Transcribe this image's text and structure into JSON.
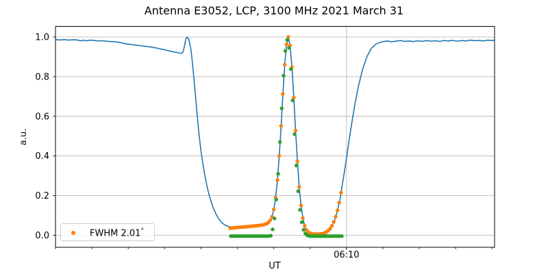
{
  "title": "Antenna E3052, LCP, 3100 MHz 2021 March 31",
  "colors": {
    "line_blue": "#1f77b4",
    "scatter_orange": "#ff7f0e",
    "scatter_green": "#2ca02c",
    "grid": "#b0b0b0",
    "spine": "#000000",
    "background": "#ffffff"
  },
  "legend": {
    "label": "FWHM 2.01",
    "degree_symbol": "°",
    "marker": "circle",
    "marker_color": "#ff7f0e",
    "position": "lower left"
  },
  "chart_data": {
    "type": "line+scatter",
    "title": "Antenna E3052, LCP, 3100 MHz 2021 March 31",
    "xlabel": "UT",
    "ylabel": "a.u.",
    "x_unit": "minutes after 06:00 UT",
    "xlim": [
      2.0,
      14.07
    ],
    "ylim": [
      -0.055,
      1.06
    ],
    "y_ticks": [
      0.0,
      0.2,
      0.4,
      0.6,
      0.8,
      1.0
    ],
    "x_major_ticks": [
      {
        "t": 10,
        "label": "06:10"
      }
    ],
    "x_minor_ticks": [
      2,
      3,
      4,
      5,
      6,
      7,
      8,
      9,
      10,
      11,
      12,
      13,
      14
    ],
    "grid": true,
    "legend": {
      "entries": [
        {
          "label": "FWHM 2.01°",
          "marker": "circle",
          "color": "#ff7f0e",
          "series": "orange-points"
        }
      ],
      "position": "lower left"
    },
    "series": [
      {
        "name": "blue-line",
        "type": "line",
        "color": "#1f77b4",
        "points": [
          [
            2.0,
            0.987
          ],
          [
            2.12,
            0.985
          ],
          [
            2.24,
            0.987
          ],
          [
            2.36,
            0.984
          ],
          [
            2.48,
            0.986
          ],
          [
            2.6,
            0.985
          ],
          [
            2.7,
            0.98
          ],
          [
            2.76,
            0.984
          ],
          [
            2.84,
            0.981
          ],
          [
            2.96,
            0.984
          ],
          [
            3.08,
            0.982
          ],
          [
            3.2,
            0.98
          ],
          [
            3.32,
            0.981
          ],
          [
            3.44,
            0.978
          ],
          [
            3.56,
            0.977
          ],
          [
            3.68,
            0.975
          ],
          [
            3.8,
            0.971
          ],
          [
            3.92,
            0.966
          ],
          [
            4.04,
            0.963
          ],
          [
            4.16,
            0.96
          ],
          [
            4.28,
            0.957
          ],
          [
            4.4,
            0.955
          ],
          [
            4.52,
            0.952
          ],
          [
            4.64,
            0.949
          ],
          [
            4.76,
            0.945
          ],
          [
            4.88,
            0.94
          ],
          [
            5.0,
            0.936
          ],
          [
            5.12,
            0.93
          ],
          [
            5.24,
            0.925
          ],
          [
            5.36,
            0.921
          ],
          [
            5.46,
            0.917
          ],
          [
            5.51,
            0.925
          ],
          [
            5.55,
            0.958
          ],
          [
            5.58,
            0.988
          ],
          [
            5.61,
            0.999
          ],
          [
            5.64,
            0.996
          ],
          [
            5.68,
            0.978
          ],
          [
            5.72,
            0.94
          ],
          [
            5.76,
            0.878
          ],
          [
            5.8,
            0.8
          ],
          [
            5.85,
            0.7
          ],
          [
            5.9,
            0.596
          ],
          [
            5.95,
            0.5
          ],
          [
            6.0,
            0.425
          ],
          [
            6.06,
            0.352
          ],
          [
            6.12,
            0.288
          ],
          [
            6.18,
            0.235
          ],
          [
            6.24,
            0.192
          ],
          [
            6.32,
            0.146
          ],
          [
            6.4,
            0.112
          ],
          [
            6.48,
            0.085
          ],
          [
            6.56,
            0.066
          ],
          [
            6.64,
            0.054
          ],
          [
            6.72,
            0.047
          ],
          [
            6.8,
            0.043
          ],
          [
            6.9,
            0.041
          ],
          [
            7.0,
            0.042
          ],
          [
            7.1,
            0.043
          ],
          [
            7.2,
            0.044
          ],
          [
            7.3,
            0.045
          ],
          [
            7.4,
            0.046
          ],
          [
            7.5,
            0.048
          ],
          [
            7.6,
            0.05
          ],
          [
            7.7,
            0.052
          ],
          [
            7.8,
            0.056
          ],
          [
            7.88,
            0.066
          ],
          [
            7.94,
            0.085
          ],
          [
            8.0,
            0.128
          ],
          [
            8.05,
            0.188
          ],
          [
            8.1,
            0.276
          ],
          [
            8.15,
            0.398
          ],
          [
            8.2,
            0.545
          ],
          [
            8.25,
            0.705
          ],
          [
            8.3,
            0.858
          ],
          [
            8.35,
            0.96
          ],
          [
            8.4,
            1.0
          ],
          [
            8.45,
            0.957
          ],
          [
            8.5,
            0.848
          ],
          [
            8.55,
            0.695
          ],
          [
            8.6,
            0.528
          ],
          [
            8.65,
            0.373
          ],
          [
            8.7,
            0.244
          ],
          [
            8.75,
            0.15
          ],
          [
            8.8,
            0.087
          ],
          [
            8.85,
            0.048
          ],
          [
            8.9,
            0.027
          ],
          [
            8.95,
            0.016
          ],
          [
            9.0,
            0.012
          ],
          [
            9.1,
            0.01
          ],
          [
            9.2,
            0.01
          ],
          [
            9.3,
            0.011
          ],
          [
            9.4,
            0.014
          ],
          [
            9.5,
            0.025
          ],
          [
            9.58,
            0.042
          ],
          [
            9.66,
            0.07
          ],
          [
            9.74,
            0.115
          ],
          [
            9.82,
            0.18
          ],
          [
            9.9,
            0.272
          ],
          [
            9.96,
            0.34
          ],
          [
            10.02,
            0.415
          ],
          [
            10.08,
            0.49
          ],
          [
            10.16,
            0.585
          ],
          [
            10.24,
            0.67
          ],
          [
            10.32,
            0.745
          ],
          [
            10.44,
            0.835
          ],
          [
            10.56,
            0.9
          ],
          [
            10.68,
            0.942
          ],
          [
            10.8,
            0.963
          ],
          [
            10.88,
            0.97
          ],
          [
            10.96,
            0.974
          ],
          [
            11.0,
            0.977
          ],
          [
            11.12,
            0.98
          ],
          [
            11.24,
            0.976
          ],
          [
            11.36,
            0.979
          ],
          [
            11.48,
            0.982
          ],
          [
            11.6,
            0.978
          ],
          [
            11.72,
            0.98
          ],
          [
            11.84,
            0.977
          ],
          [
            11.96,
            0.981
          ],
          [
            12.08,
            0.978
          ],
          [
            12.2,
            0.982
          ],
          [
            12.32,
            0.979
          ],
          [
            12.44,
            0.981
          ],
          [
            12.56,
            0.978
          ],
          [
            12.68,
            0.982
          ],
          [
            12.8,
            0.98
          ],
          [
            12.92,
            0.983
          ],
          [
            13.04,
            0.979
          ],
          [
            13.16,
            0.982
          ],
          [
            13.28,
            0.98
          ],
          [
            13.4,
            0.984
          ],
          [
            13.52,
            0.981
          ],
          [
            13.64,
            0.983
          ],
          [
            13.76,
            0.98
          ],
          [
            13.88,
            0.984
          ],
          [
            14.0,
            0.982
          ],
          [
            14.07,
            0.984
          ]
        ]
      },
      {
        "name": "orange-points",
        "type": "scatter",
        "color": "#ff7f0e",
        "points": [
          [
            6.8,
            0.036
          ],
          [
            6.85,
            0.037
          ],
          [
            6.9,
            0.038
          ],
          [
            6.95,
            0.038
          ],
          [
            7.0,
            0.04
          ],
          [
            7.05,
            0.04
          ],
          [
            7.1,
            0.041
          ],
          [
            7.15,
            0.042
          ],
          [
            7.2,
            0.043
          ],
          [
            7.25,
            0.043
          ],
          [
            7.3,
            0.044
          ],
          [
            7.35,
            0.045
          ],
          [
            7.4,
            0.046
          ],
          [
            7.45,
            0.047
          ],
          [
            7.5,
            0.048
          ],
          [
            7.55,
            0.048
          ],
          [
            7.6,
            0.05
          ],
          [
            7.65,
            0.051
          ],
          [
            7.7,
            0.052
          ],
          [
            7.75,
            0.055
          ],
          [
            7.8,
            0.058
          ],
          [
            7.85,
            0.064
          ],
          [
            7.9,
            0.075
          ],
          [
            7.95,
            0.094
          ],
          [
            8.0,
            0.13
          ],
          [
            8.05,
            0.19
          ],
          [
            8.1,
            0.278
          ],
          [
            8.15,
            0.401
          ],
          [
            8.2,
            0.552
          ],
          [
            8.25,
            0.713
          ],
          [
            8.3,
            0.86
          ],
          [
            8.35,
            0.963
          ],
          [
            8.4,
            1.0
          ],
          [
            8.45,
            0.957
          ],
          [
            8.5,
            0.848
          ],
          [
            8.55,
            0.695
          ],
          [
            8.6,
            0.528
          ],
          [
            8.65,
            0.373
          ],
          [
            8.7,
            0.244
          ],
          [
            8.75,
            0.15
          ],
          [
            8.8,
            0.087
          ],
          [
            8.85,
            0.048
          ],
          [
            8.9,
            0.027
          ],
          [
            8.95,
            0.016
          ],
          [
            9.0,
            0.011
          ],
          [
            9.05,
            0.008
          ],
          [
            9.1,
            0.006
          ],
          [
            9.15,
            0.006
          ],
          [
            9.2,
            0.006
          ],
          [
            9.25,
            0.006
          ],
          [
            9.3,
            0.007
          ],
          [
            9.35,
            0.009
          ],
          [
            9.4,
            0.012
          ],
          [
            9.45,
            0.017
          ],
          [
            9.5,
            0.024
          ],
          [
            9.55,
            0.034
          ],
          [
            9.6,
            0.048
          ],
          [
            9.65,
            0.068
          ],
          [
            9.7,
            0.094
          ],
          [
            9.75,
            0.126
          ],
          [
            9.8,
            0.165
          ],
          [
            9.85,
            0.215
          ]
        ]
      },
      {
        "name": "green-points",
        "type": "scatter",
        "color": "#2ca02c",
        "points": [
          [
            6.82,
            -0.004
          ],
          [
            6.87,
            -0.004
          ],
          [
            6.92,
            -0.004
          ],
          [
            6.97,
            -0.004
          ],
          [
            7.02,
            -0.004
          ],
          [
            7.07,
            -0.004
          ],
          [
            7.12,
            -0.004
          ],
          [
            7.17,
            -0.004
          ],
          [
            7.22,
            -0.004
          ],
          [
            7.27,
            -0.004
          ],
          [
            7.32,
            -0.004
          ],
          [
            7.37,
            -0.004
          ],
          [
            7.42,
            -0.004
          ],
          [
            7.47,
            -0.004
          ],
          [
            7.52,
            -0.004
          ],
          [
            7.57,
            -0.004
          ],
          [
            7.62,
            -0.004
          ],
          [
            7.67,
            -0.004
          ],
          [
            7.72,
            -0.004
          ],
          [
            7.77,
            -0.004
          ],
          [
            7.82,
            -0.004
          ],
          [
            7.87,
            -0.003
          ],
          [
            7.92,
            -0.002
          ],
          [
            7.97,
            0.03
          ],
          [
            8.02,
            0.085
          ],
          [
            8.07,
            0.18
          ],
          [
            8.12,
            0.31
          ],
          [
            8.17,
            0.47
          ],
          [
            8.22,
            0.64
          ],
          [
            8.27,
            0.805
          ],
          [
            8.32,
            0.93
          ],
          [
            8.37,
            0.985
          ],
          [
            8.42,
            0.945
          ],
          [
            8.47,
            0.838
          ],
          [
            8.52,
            0.68
          ],
          [
            8.57,
            0.51
          ],
          [
            8.62,
            0.352
          ],
          [
            8.67,
            0.222
          ],
          [
            8.72,
            0.128
          ],
          [
            8.77,
            0.066
          ],
          [
            8.82,
            0.028
          ],
          [
            8.87,
            0.009
          ],
          [
            8.92,
            0.0
          ],
          [
            8.97,
            -0.003
          ],
          [
            9.02,
            -0.004
          ],
          [
            9.07,
            -0.004
          ],
          [
            9.12,
            -0.004
          ],
          [
            9.17,
            -0.004
          ],
          [
            9.22,
            -0.004
          ],
          [
            9.27,
            -0.004
          ],
          [
            9.32,
            -0.004
          ],
          [
            9.37,
            -0.004
          ],
          [
            9.42,
            -0.004
          ],
          [
            9.47,
            -0.004
          ],
          [
            9.52,
            -0.004
          ],
          [
            9.57,
            -0.004
          ],
          [
            9.62,
            -0.004
          ],
          [
            9.67,
            -0.004
          ],
          [
            9.72,
            -0.004
          ],
          [
            9.77,
            -0.004
          ],
          [
            9.82,
            -0.004
          ],
          [
            9.87,
            -0.004
          ]
        ]
      }
    ]
  }
}
